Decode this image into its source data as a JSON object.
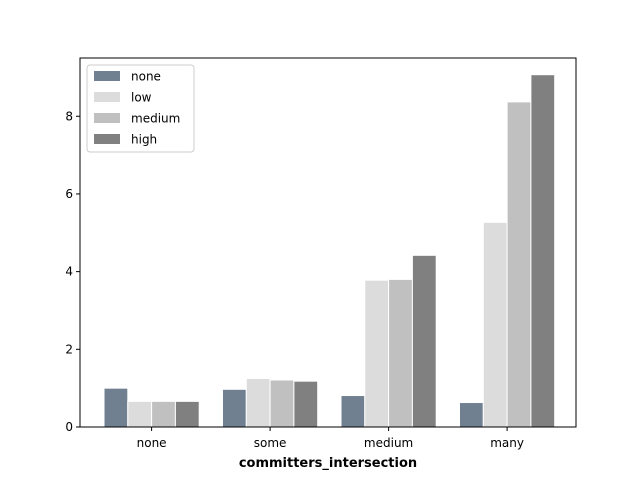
{
  "chart_data": {
    "type": "bar",
    "title": "",
    "xlabel": "committers_intersection",
    "ylabel": "",
    "categories": [
      "none",
      "some",
      "medium",
      "many"
    ],
    "series": [
      {
        "name": "none",
        "color": "#708090",
        "values": [
          1.0,
          0.97,
          0.81,
          0.63
        ]
      },
      {
        "name": "low",
        "color": "#dcdcdc",
        "values": [
          0.66,
          1.25,
          3.78,
          5.27
        ]
      },
      {
        "name": "medium",
        "color": "#c0c0c0",
        "values": [
          0.66,
          1.21,
          3.8,
          8.37
        ]
      },
      {
        "name": "high",
        "color": "#808080",
        "values": [
          0.66,
          1.18,
          4.42,
          9.07
        ]
      }
    ],
    "ylim": [
      0,
      9.5
    ],
    "yticks": [
      0,
      2,
      4,
      6,
      8
    ],
    "grid": false,
    "legend_position": "top-left"
  }
}
